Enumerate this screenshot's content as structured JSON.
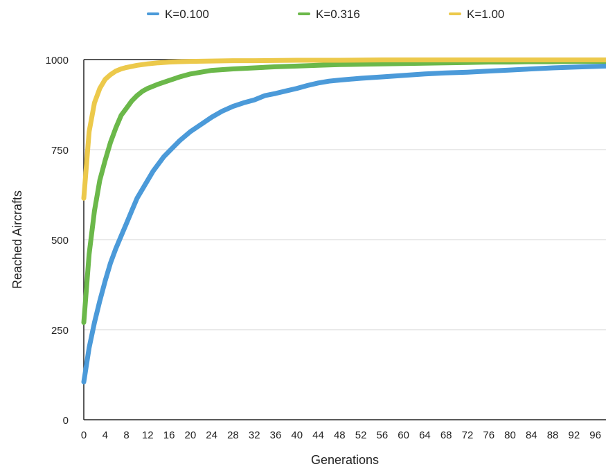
{
  "chart_data": {
    "type": "line",
    "title": "",
    "xlabel": "Generations",
    "ylabel": "Reached Aircrafts",
    "xlim": [
      0,
      98
    ],
    "ylim": [
      0,
      1000
    ],
    "xticks": [
      0,
      4,
      8,
      12,
      16,
      20,
      24,
      28,
      32,
      36,
      40,
      44,
      48,
      52,
      56,
      60,
      64,
      68,
      72,
      76,
      80,
      84,
      88,
      92,
      96
    ],
    "yticks": [
      0,
      250,
      500,
      750,
      1000
    ],
    "grid": "horizontal",
    "legend_position": "top",
    "series": [
      {
        "name": "K=0.100",
        "color": "#4b9ad9",
        "x": [
          0,
          1,
          2,
          3,
          4,
          5,
          6,
          7,
          8,
          9,
          10,
          11,
          12,
          13,
          14,
          15,
          16,
          18,
          20,
          22,
          24,
          26,
          28,
          30,
          32,
          34,
          36,
          38,
          40,
          42,
          44,
          46,
          48,
          52,
          56,
          60,
          64,
          68,
          72,
          76,
          80,
          84,
          88,
          92,
          96,
          98
        ],
        "values": [
          105,
          200,
          270,
          330,
          385,
          435,
          475,
          510,
          545,
          580,
          615,
          640,
          665,
          690,
          710,
          730,
          745,
          775,
          800,
          820,
          840,
          857,
          870,
          880,
          888,
          900,
          906,
          913,
          920,
          928,
          935,
          940,
          943,
          948,
          952,
          956,
          960,
          963,
          965,
          968,
          971,
          974,
          977,
          979,
          981,
          982
        ]
      },
      {
        "name": "K=0.316",
        "color": "#6bb84a",
        "x": [
          0,
          1,
          2,
          3,
          4,
          5,
          6,
          7,
          8,
          9,
          10,
          11,
          12,
          14,
          16,
          18,
          20,
          22,
          24,
          28,
          32,
          36,
          40,
          44,
          48,
          52,
          56,
          60,
          64,
          68,
          72,
          76,
          80,
          84,
          88,
          92,
          96,
          98
        ],
        "values": [
          270,
          460,
          580,
          665,
          720,
          770,
          810,
          845,
          865,
          885,
          900,
          912,
          920,
          932,
          942,
          952,
          960,
          965,
          970,
          974,
          977,
          980,
          982,
          984,
          986,
          987,
          988,
          989,
          990,
          991,
          992,
          993,
          993,
          994,
          994,
          995,
          995,
          995
        ]
      },
      {
        "name": "K=1.00",
        "color": "#ecc94b",
        "x": [
          0,
          1,
          2,
          3,
          4,
          5,
          6,
          7,
          8,
          10,
          12,
          14,
          16,
          20,
          24,
          28,
          32,
          40,
          48,
          56,
          64,
          72,
          80,
          88,
          96,
          98
        ],
        "values": [
          615,
          800,
          880,
          920,
          945,
          958,
          968,
          974,
          978,
          984,
          988,
          991,
          993,
          995,
          996,
          997,
          997,
          998,
          998,
          999,
          999,
          999,
          999,
          999,
          999,
          999
        ]
      }
    ]
  }
}
